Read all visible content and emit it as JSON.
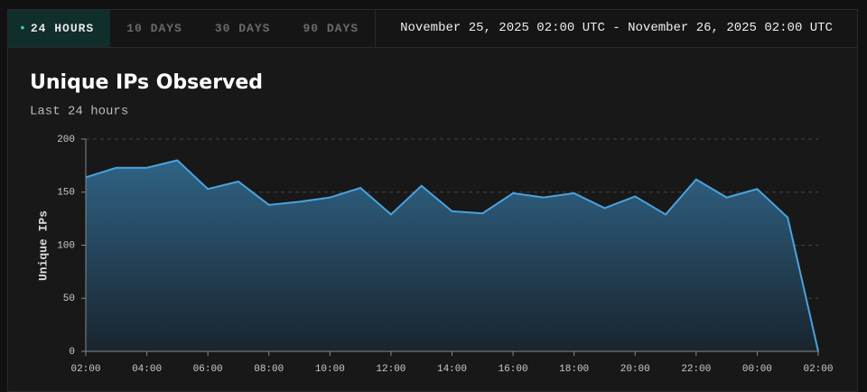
{
  "tabs": [
    {
      "label": "24 HOURS",
      "active": true
    },
    {
      "label": "10 DAYS",
      "active": false
    },
    {
      "label": "30 DAYS",
      "active": false
    },
    {
      "label": "90 DAYS",
      "active": false
    }
  ],
  "date_range": "November 25, 2025 02:00 UTC - November 26, 2025 02:00 UTC",
  "chart_data": {
    "type": "area",
    "title": "Unique IPs Observed",
    "subtitle": "Last 24 hours",
    "y_label": "Unique IPs",
    "categories": [
      "02:00",
      null,
      "04:00",
      null,
      "06:00",
      null,
      "08:00",
      null,
      "10:00",
      null,
      "12:00",
      null,
      "14:00",
      null,
      "16:00",
      null,
      "18:00",
      null,
      "20:00",
      null,
      "22:00",
      null,
      "00:00",
      null,
      "02:00"
    ],
    "values": [
      164,
      173,
      173,
      180,
      153,
      160,
      138,
      141,
      145,
      154,
      129,
      156,
      132,
      130,
      149,
      145,
      149,
      135,
      146,
      129,
      162,
      145,
      153,
      126,
      0
    ],
    "color": "#4aa3df",
    "ylim": [
      0,
      200
    ],
    "yticks": [
      0,
      50,
      100,
      150,
      200
    ],
    "grid": true
  }
}
